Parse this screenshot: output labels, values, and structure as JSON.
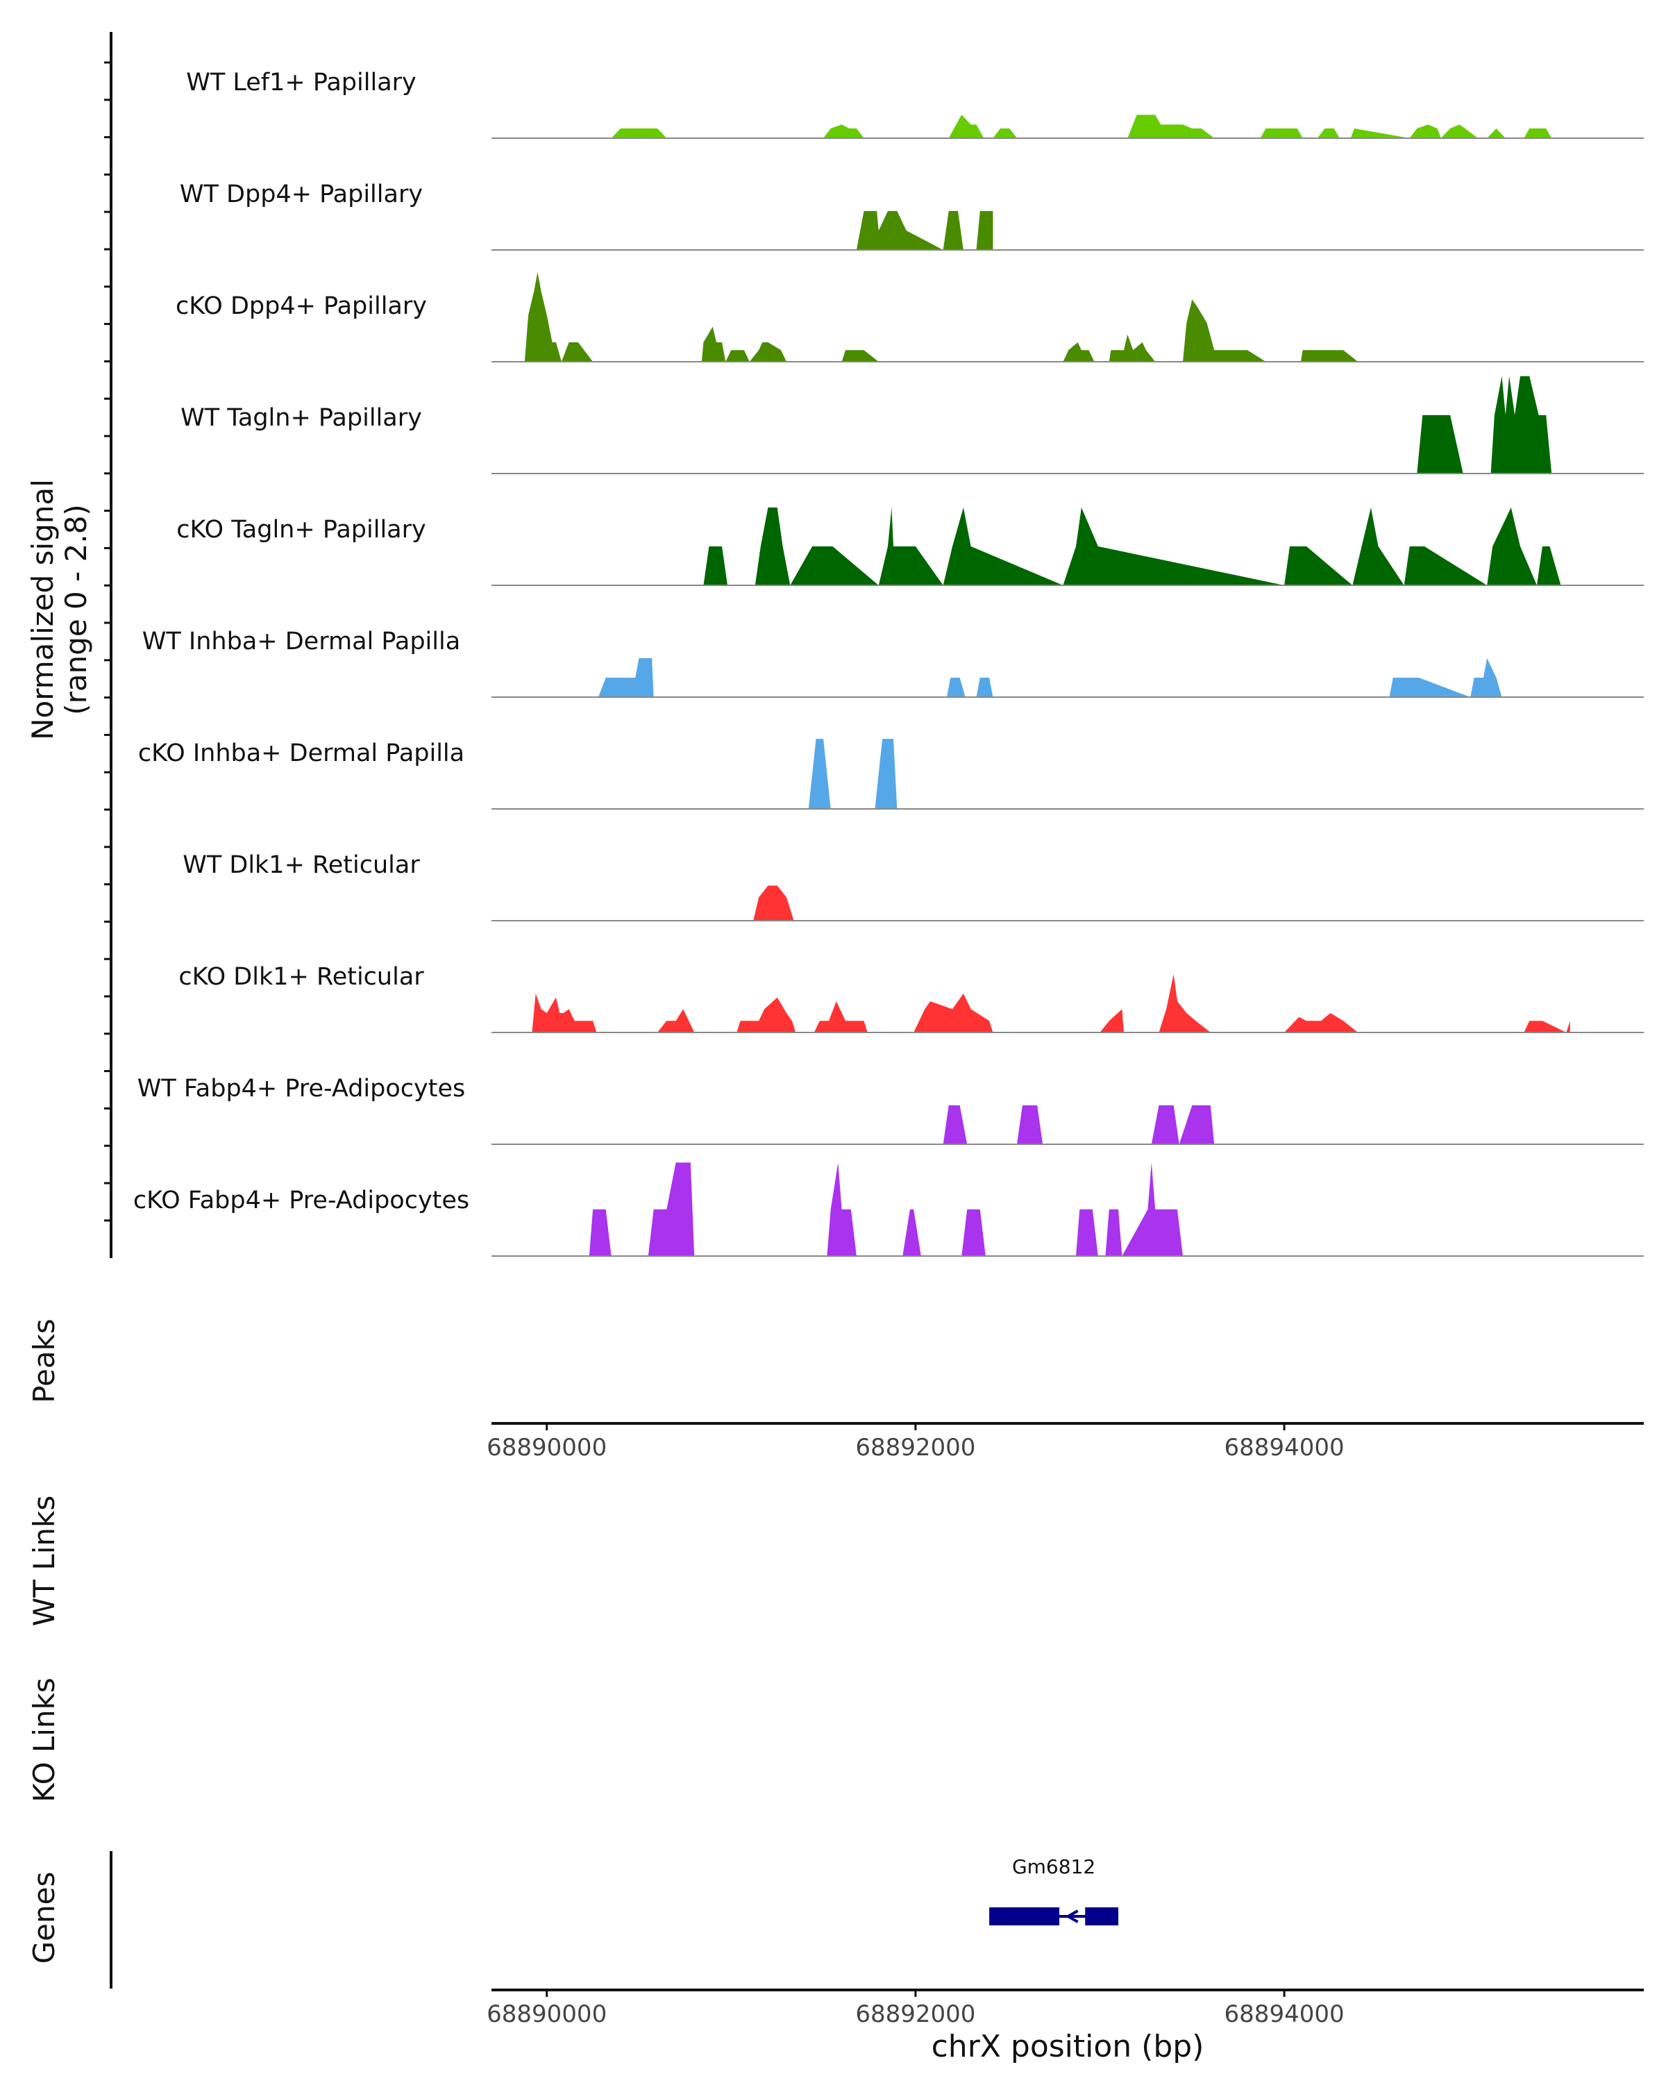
{
  "chart_data": {
    "type": "area",
    "title": "",
    "region": "chrX",
    "xlabel": "chrX position (bp)",
    "xlim": [
      68889700,
      68895950
    ],
    "x_ticks": [
      68890000,
      68892000,
      68894000
    ],
    "x_tick_labels": [
      "68890000",
      "68892000",
      "68894000"
    ],
    "ylabel": "Normalized signal",
    "ylabel_range": "(range 0 - 2.8)",
    "ylim": [
      0,
      2.8
    ],
    "grid": false,
    "series": [
      {
        "name": "WT Lef1+ Papillary",
        "color": "#66cc00",
        "x": [
          68890350,
          68890400,
          68890600,
          68890650,
          68891500,
          68891540,
          68891600,
          68891640,
          68891680,
          68891720,
          68892180,
          68892220,
          68892250,
          68892300,
          68892330,
          68892370,
          68892420,
          68892460,
          68892510,
          68892550,
          68893150,
          68893200,
          68893300,
          68893330,
          68893450,
          68893500,
          68893550,
          68893620,
          68893870,
          68893900,
          68894070,
          68894100,
          68894180,
          68894220,
          68894270,
          68894300,
          68894360,
          68894380,
          68894680,
          68894720,
          68894780,
          68894830,
          68894850,
          68894900,
          68894950,
          68894980,
          68895050,
          68895100,
          68895150,
          68895200,
          68895300,
          68895330,
          68895420,
          68895450
        ],
        "values": [
          0,
          0.25,
          0.25,
          0,
          0,
          0.25,
          0.35,
          0.25,
          0.25,
          0,
          0,
          0.35,
          0.6,
          0.35,
          0.35,
          0,
          0,
          0.25,
          0.25,
          0,
          0,
          0.6,
          0.6,
          0.35,
          0.35,
          0.25,
          0.25,
          0,
          0,
          0.25,
          0.25,
          0,
          0,
          0.25,
          0.25,
          0,
          0,
          0.25,
          0,
          0.25,
          0.35,
          0.25,
          0,
          0.25,
          0.35,
          0.25,
          0,
          0,
          0.25,
          0,
          0,
          0.25,
          0.25,
          0
        ]
      },
      {
        "name": "WT Dpp4+ Papillary",
        "color": "#4a8b00",
        "x": [
          68891680,
          68891720,
          68891790,
          68891800,
          68891850,
          68891900,
          68891950,
          68892150,
          68892180,
          68892230,
          68892260,
          68892330,
          68892350,
          68892420
        ],
        "values": [
          0,
          1.0,
          1.0,
          0.5,
          1.0,
          1.0,
          0.5,
          0,
          1.0,
          1.0,
          0,
          0,
          1.0,
          1.0
        ]
      },
      {
        "name": "cKO Dpp4+ Papillary",
        "color": "#4a8b00",
        "x": [
          68889880,
          68889900,
          68889930,
          68889950,
          68889970,
          68890000,
          68890030,
          68890050,
          68890080,
          68890120,
          68890140,
          68890170,
          68890250,
          68890840,
          68890850,
          68890900,
          68890920,
          68890950,
          68890970,
          68891000,
          68891070,
          68891100,
          68891150,
          68891170,
          68891200,
          68891270,
          68891300,
          68891600,
          68891620,
          68891670,
          68891720,
          68891800,
          68892800,
          68892830,
          68892880,
          68892900,
          68892940,
          68892970,
          68893050,
          68893060,
          68893130,
          68893150,
          68893180,
          68893230,
          68893250,
          68893300,
          68893450,
          68893470,
          68893500,
          68893530,
          68893580,
          68893620,
          68893650,
          68893700,
          68893800,
          68893900,
          68894090,
          68894100,
          68894200,
          68894230,
          68894280,
          68894320,
          68894400
        ],
        "values": [
          0,
          1.2,
          1.8,
          2.3,
          1.8,
          1.2,
          0.5,
          0.5,
          0,
          0.5,
          0.5,
          0.5,
          0,
          0,
          0.5,
          0.9,
          0.5,
          0.5,
          0,
          0.3,
          0.3,
          0,
          0.3,
          0.5,
          0.5,
          0.3,
          0,
          0,
          0.3,
          0.3,
          0.3,
          0,
          0,
          0.3,
          0.5,
          0.3,
          0.3,
          0,
          0,
          0.3,
          0.3,
          0.7,
          0.3,
          0.5,
          0.3,
          0,
          0,
          1.0,
          1.6,
          1.4,
          1.0,
          0.3,
          0.3,
          0.3,
          0.3,
          0,
          0,
          0.3,
          0.3,
          0.3,
          0.3,
          0.3,
          0
        ],
        "x_note": "cKO Dpp4+ approximate breakpoints"
      },
      {
        "name": "WT Tagln+ Papillary",
        "color": "#006600",
        "x": [
          68894720,
          68894750,
          68894830,
          68894860,
          68894880,
          68894900,
          68894970,
          68895120,
          68895140,
          68895180,
          68895200,
          68895220,
          68895250,
          68895280,
          68895300,
          68895330,
          68895380,
          68895420,
          68895450
        ],
        "values": [
          0,
          1.5,
          1.5,
          1.5,
          1.5,
          1.5,
          0,
          0,
          1.5,
          2.5,
          1.5,
          2.5,
          1.5,
          2.5,
          2.5,
          2.5,
          1.5,
          1.5,
          0
        ]
      },
      {
        "name": "cKO Tagln+ Papillary",
        "color": "#006600",
        "x": [
          68890850,
          68890880,
          68890950,
          68890980,
          68891130,
          68891160,
          68891200,
          68891250,
          68891280,
          68891320,
          68891440,
          68891550,
          68891800,
          68891850,
          68891870,
          68891880,
          68892000,
          68892150,
          68892200,
          68892260,
          68892300,
          68892800,
          68892870,
          68892900,
          68892990,
          68894000,
          68894030,
          68894120,
          68894370,
          68894420,
          68894470,
          68894510,
          68894650,
          68894680,
          68894760,
          68895100,
          68895130,
          68895230,
          68895280,
          68895370,
          68895400,
          68895440,
          68895500
        ],
        "values": [
          0,
          1.0,
          1.0,
          0,
          0,
          1.0,
          2.0,
          2.0,
          1.0,
          0,
          1.0,
          1.0,
          0,
          1.0,
          2.0,
          1.0,
          1.0,
          0,
          1.0,
          2.0,
          1.0,
          0,
          1.0,
          2.0,
          1.0,
          0,
          1.0,
          1.0,
          0,
          1.0,
          2.0,
          1.0,
          0,
          1.0,
          1.0,
          0,
          1.0,
          2.0,
          1.0,
          0,
          1.0,
          1.0,
          0
        ]
      },
      {
        "name": "WT Inhba+ Dermal Papilla",
        "color": "#56a7e8",
        "x": [
          68890280,
          68890320,
          68890480,
          68890500,
          68890570,
          68890580,
          68892170,
          68892190,
          68892240,
          68892270,
          68892330,
          68892350,
          68892400,
          68892420,
          68894570,
          68894590,
          68894730,
          68895010,
          68895030,
          68895080,
          68895100,
          68895150,
          68895180
        ],
        "values": [
          0,
          0.5,
          0.5,
          1.0,
          1.0,
          0,
          0,
          0.5,
          0.5,
          0,
          0,
          0.5,
          0.5,
          0,
          0,
          0.5,
          0.5,
          0,
          0.5,
          0.5,
          1.0,
          0.5,
          0
        ]
      },
      {
        "name": "cKO Inhba+ Dermal Papilla",
        "color": "#56a7e8",
        "x": [
          68891420,
          68891460,
          68891500,
          68891540,
          68891780,
          68891820,
          68891880,
          68891900
        ],
        "values": [
          0,
          1.8,
          1.8,
          0,
          0,
          1.8,
          1.8,
          0
        ]
      },
      {
        "name": "WT Dlk1+ Reticular",
        "color": "#ff3333",
        "x": [
          68891120,
          68891150,
          68891200,
          68891250,
          68891300,
          68891340
        ],
        "values": [
          0,
          0.6,
          0.9,
          0.9,
          0.6,
          0
        ]
      },
      {
        "name": "cKO Dlk1+ Reticular",
        "color": "#ff3333",
        "x": [
          68889920,
          68889940,
          68889970,
          68890000,
          68890050,
          68890070,
          68890090,
          68890120,
          68890150,
          68890180,
          68890250,
          68890270,
          68890600,
          68890650,
          68890700,
          68890740,
          68890800,
          68891030,
          68891050,
          68891150,
          68891180,
          68891250,
          68891300,
          68891330,
          68891350,
          68891450,
          68891480,
          68891530,
          68891570,
          68891620,
          68891700,
          68891720,
          68891740,
          68891990,
          68892050,
          68892080,
          68892200,
          68892260,
          68892300,
          68892400,
          68892420,
          68893000,
          68893050,
          68893120,
          68893130,
          68893320,
          68893360,
          68893400,
          68893420,
          68893470,
          68893520,
          68893600,
          68893620,
          68894000,
          68894080,
          68894120,
          68894180,
          68894200,
          68894250,
          68894320,
          68894400,
          68894450,
          68895300,
          68895330,
          68895400,
          68895530,
          68895550
        ],
        "values": [
          0,
          1.0,
          0.6,
          0.5,
          0.9,
          0.5,
          0.5,
          0.6,
          0.3,
          0.3,
          0.3,
          0,
          0,
          0.3,
          0.3,
          0.6,
          0,
          0,
          0.3,
          0.3,
          0.6,
          0.9,
          0.5,
          0.3,
          0,
          0,
          0.3,
          0.3,
          0.8,
          0.3,
          0.3,
          0.3,
          0,
          0,
          0.6,
          0.8,
          0.6,
          1.0,
          0.6,
          0.3,
          0,
          0,
          0.3,
          0.6,
          0,
          0,
          0.6,
          1.5,
          0.8,
          0.5,
          0.3,
          0,
          0,
          0,
          0.4,
          0.3,
          0.3,
          0.3,
          0.5,
          0.3,
          0,
          0,
          0,
          0.3,
          0.3,
          0,
          0.3
        ]
      },
      {
        "name": "WT Fabp4+ Pre-Adipocytes",
        "color": "#aa33ee",
        "x": [
          68892150,
          68892180,
          68892240,
          68892280,
          68892550,
          68892580,
          68892660,
          68892690,
          68893280,
          68893320,
          68893400,
          68893430,
          68893500,
          68893530,
          68893600,
          68893620
        ],
        "values": [
          0,
          1.0,
          1.0,
          0,
          0,
          1.0,
          1.0,
          0,
          0,
          1.0,
          1.0,
          0,
          1.0,
          1.0,
          1.0,
          0
        ]
      },
      {
        "name": "cKO Fabp4+ Pre-Adipocytes",
        "color": "#aa33ee",
        "x": [
          68890230,
          68890250,
          68890320,
          68890350,
          68890550,
          68890580,
          68890650,
          68890700,
          68890780,
          68890800,
          68891520,
          68891540,
          68891580,
          68891600,
          68891650,
          68891680,
          68891930,
          68891970,
          68891990,
          68892030,
          68892250,
          68892280,
          68892350,
          68892380,
          68892870,
          68892890,
          68892960,
          68892990,
          68893030,
          68893050,
          68893100,
          68893120,
          68893260,
          68893280,
          68893300,
          68893330,
          68893420,
          68893450
        ],
        "values": [
          0,
          1.2,
          1.2,
          0,
          0,
          1.2,
          1.2,
          2.4,
          2.4,
          0,
          0,
          1.2,
          2.4,
          1.2,
          1.2,
          0,
          0,
          1.2,
          1.2,
          0,
          0,
          1.2,
          1.2,
          0,
          0,
          1.2,
          1.2,
          0,
          0,
          1.2,
          1.2,
          0,
          1.2,
          2.4,
          1.2,
          1.2,
          1.2,
          0
        ]
      }
    ],
    "peaks_label": "Peaks",
    "wt_links_label": "WT Links",
    "ko_links_label": "KO Links",
    "genes_label": "Genes",
    "genes": [
      {
        "name": "Gm6812",
        "start": 68892400,
        "end": 68893100,
        "strand": "-",
        "exons": [
          [
            68892400,
            68892780
          ],
          [
            68892920,
            68893100
          ]
        ]
      }
    ]
  }
}
